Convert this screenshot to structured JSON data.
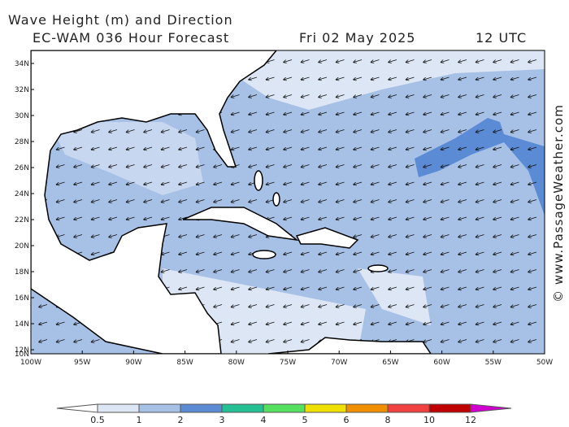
{
  "title": "Wave Height (m) and Direction",
  "subtitle": "EC-WAM 036 Hour Forecast",
  "date": "Fri 02 May 2025",
  "time": "12 UTC",
  "watermark": "© www.PassageWeather.com",
  "lat_labels": [
    "34N",
    "32N",
    "30N",
    "28N",
    "26N",
    "24N",
    "22N",
    "20N",
    "18N",
    "16N",
    "14N",
    "12N",
    "10N"
  ],
  "lon_labels": [
    "100W",
    "95W",
    "90W",
    "85W",
    "80W",
    "75W",
    "70W",
    "65W",
    "60W",
    "55W",
    "50W"
  ],
  "legend": {
    "labels": [
      0.5,
      1,
      2,
      3,
      4,
      5,
      6,
      8,
      10,
      12
    ],
    "colors": [
      "#ffffff",
      "#dde6f5",
      "#a6c0e6",
      "#5a8bd4",
      "#26c095",
      "#55e060",
      "#f0e000",
      "#f09000",
      "#f04040",
      "#c00000",
      "#d000d0"
    ]
  }
}
